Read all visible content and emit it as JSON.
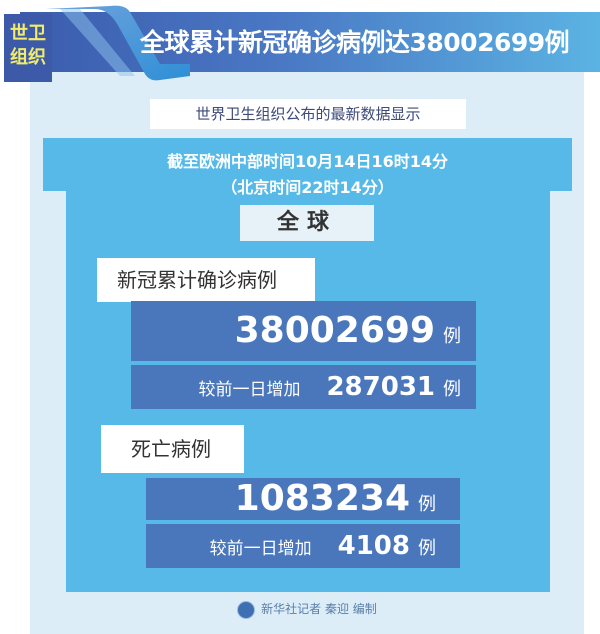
{
  "badge": {
    "line1": "世卫",
    "line2": "组织"
  },
  "title": "全球累计新冠确诊病例达38002699例",
  "subtitle": "世界卫生组织公布的最新数据显示",
  "time": {
    "line1": "截至欧洲中部时间10月14日16时14分",
    "line2": "（北京时间22时14分）"
  },
  "region": "全球",
  "cases": {
    "label": "新冠累计确诊病例",
    "total": "38002699",
    "unit": "例",
    "increase_label": "较前一日增加",
    "increase": "287031"
  },
  "deaths": {
    "label": "死亡病例",
    "total": "1083234",
    "unit": "例",
    "increase_label": "较前一日增加",
    "increase": "4108"
  },
  "footer": {
    "logo": "xinhua-logo-icon",
    "credit": "新华社记者 秦迎 编制"
  },
  "colors": {
    "header_dark": "#3b5cae",
    "header_light": "#5bb3e3",
    "cyan": "#57b9e7",
    "dark_blue": "#4a77bc",
    "panel": "#dcedf7",
    "badge_text": "#f2ec6a"
  }
}
